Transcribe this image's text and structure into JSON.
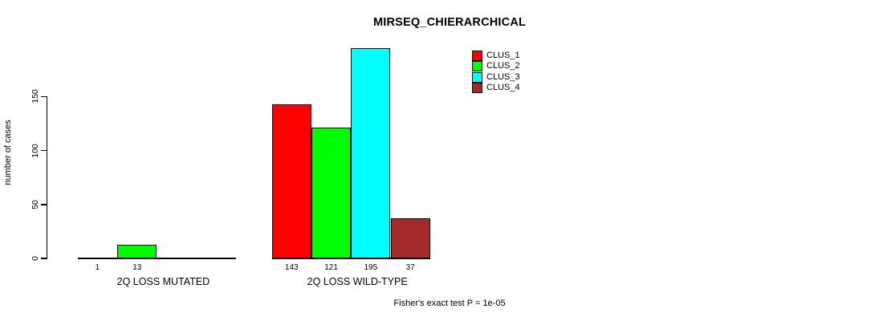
{
  "chart_data": {
    "type": "bar",
    "title": "MIRSEQ_CHIERARCHICAL",
    "ylabel": "number of cases",
    "footnote": "Fisher's exact test P = 1e-05",
    "categories": [
      "2Q LOSS MUTATED",
      "2Q LOSS WILD-TYPE"
    ],
    "series": [
      {
        "name": "CLUS_1",
        "color": "#ff0000",
        "values": [
          1,
          143
        ]
      },
      {
        "name": "CLUS_2",
        "color": "#00ff00",
        "values": [
          13,
          121
        ]
      },
      {
        "name": "CLUS_3",
        "color": "#00ffff",
        "values": [
          0,
          195
        ]
      },
      {
        "name": "CLUS_4",
        "color": "#a52a2a",
        "values": [
          0,
          37
        ]
      }
    ],
    "bar_value_labels": [
      [
        "1",
        "13"
      ],
      [
        "143",
        "121",
        "195",
        "37"
      ]
    ],
    "yticks": [
      "0",
      "50",
      "100",
      "150"
    ],
    "ylim": [
      0,
      150
    ],
    "grid": false,
    "legend_position": "top-right",
    "legend_entries": [
      "CLUS_1",
      "CLUS_2",
      "CLUS_3",
      "CLUS_4"
    ],
    "colors": {
      "axis": "#000000",
      "background": "#ffffff",
      "text": "#000000"
    }
  }
}
